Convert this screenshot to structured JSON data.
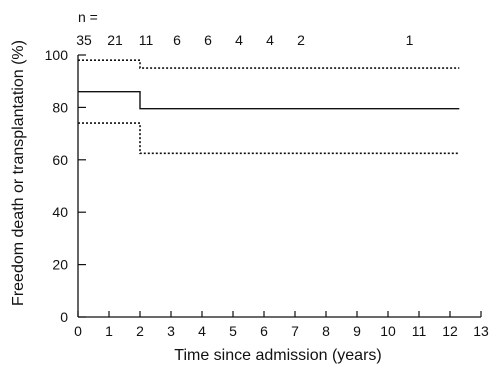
{
  "chart_data": {
    "type": "line",
    "title": "",
    "xlabel": "Time since admission (years)",
    "ylabel": "Freedom death or transplantation (%)",
    "xlim": [
      0,
      13
    ],
    "ylim": [
      0,
      100
    ],
    "x_ticks": [
      0,
      1,
      2,
      3,
      4,
      5,
      6,
      7,
      8,
      9,
      10,
      11,
      12,
      13
    ],
    "y_ticks": [
      0,
      20,
      40,
      60,
      80,
      100
    ],
    "grid": false,
    "series": [
      {
        "style": "solid",
        "x": [
          0,
          2,
          2,
          12.3
        ],
        "y": [
          86,
          86,
          79.5,
          79.5
        ]
      },
      {
        "style": "dotted",
        "x": [
          0,
          2,
          2,
          12.3
        ],
        "y": [
          98,
          98,
          95,
          95
        ]
      },
      {
        "style": "dotted",
        "x": [
          0,
          2,
          2,
          12.3
        ],
        "y": [
          74,
          74,
          62.5,
          62.5
        ]
      }
    ],
    "at_risk": {
      "label": "n =",
      "entries": [
        {
          "x": 0,
          "n": "35"
        },
        {
          "x": 1,
          "n": "21"
        },
        {
          "x": 2,
          "n": "11"
        },
        {
          "x": 3,
          "n": "6"
        },
        {
          "x": 4,
          "n": "6"
        },
        {
          "x": 5,
          "n": "4"
        },
        {
          "x": 6,
          "n": "4"
        },
        {
          "x": 7,
          "n": "2"
        },
        {
          "x": 10.5,
          "n": "1"
        }
      ]
    }
  }
}
